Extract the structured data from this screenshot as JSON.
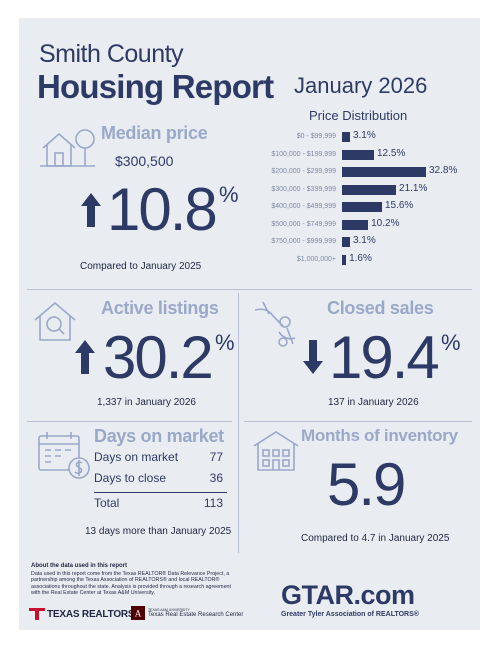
{
  "header": {
    "county": "Smith County",
    "report": "Housing Report",
    "month": "January 2026"
  },
  "median_price": {
    "label": "Median price",
    "value": "$300,500",
    "change": "10.8",
    "pct_sign": "%",
    "direction": "up",
    "note": "Compared to January 2025"
  },
  "price_distribution": {
    "title": "Price Distribution",
    "chart_data": {
      "type": "bar",
      "orientation": "horizontal",
      "categories": [
        "$0 - $99,999",
        "$100,000 - $199,999",
        "$200,000 - $299,999",
        "$300,000 - $399,999",
        "$400,000 - $499,999",
        "$500,000 - $749,999",
        "$750,000 - $999,999",
        "$1,000,000+"
      ],
      "values": [
        3.1,
        12.5,
        32.8,
        21.1,
        15.6,
        10.2,
        3.1,
        1.6
      ],
      "value_labels": [
        "3.1%",
        "12.5%",
        "32.8%",
        "21.1%",
        "15.6%",
        "10.2%",
        "3.1%",
        "1.6%"
      ],
      "title": "Price Distribution",
      "xlabel": "",
      "ylabel": ""
    }
  },
  "active_listings": {
    "label": "Active listings",
    "change": "30.2",
    "pct_sign": "%",
    "direction": "up",
    "note": "1,337 in January 2026"
  },
  "closed_sales": {
    "label": "Closed sales",
    "change": "19.4",
    "pct_sign": "%",
    "direction": "down",
    "note": "137 in January 2026"
  },
  "days_on_market": {
    "label": "Days on market",
    "rows": [
      {
        "name": "Days on market",
        "value": "77"
      },
      {
        "name": "Days to close",
        "value": "36"
      }
    ],
    "total_label": "Total",
    "total_value": "113",
    "note": "13 days more than January 2025"
  },
  "months_inventory": {
    "label": "Months of inventory",
    "value": "5.9",
    "note": "Compared to 4.7 in January 2025"
  },
  "footer": {
    "about_title": "About the data used in this report",
    "about_text": "Data used in this report come from the Texas REALTOR® Data Relevance Project, a partnership among the Texas Association of REALTORS® and local REALTOR® associations throughout the state. Analysis is provided through a research agreement with the Real Estate Center at Texas A&M University.",
    "texas_realtors": "TEXAS REALTORS",
    "tamu_small": "TEXAS A&M UNIVERSITY",
    "tamu_center": "Texas Real Estate Research Center",
    "gtar_logo": "GTAR.com",
    "gtar_tagline": "Greater Tyler Association of REALTORS®"
  },
  "colors": {
    "navy": "#2e3a66",
    "pale_blue": "#9aa8c9",
    "background": "#e9edf2",
    "red": "#c8102e",
    "maroon": "#500000"
  }
}
